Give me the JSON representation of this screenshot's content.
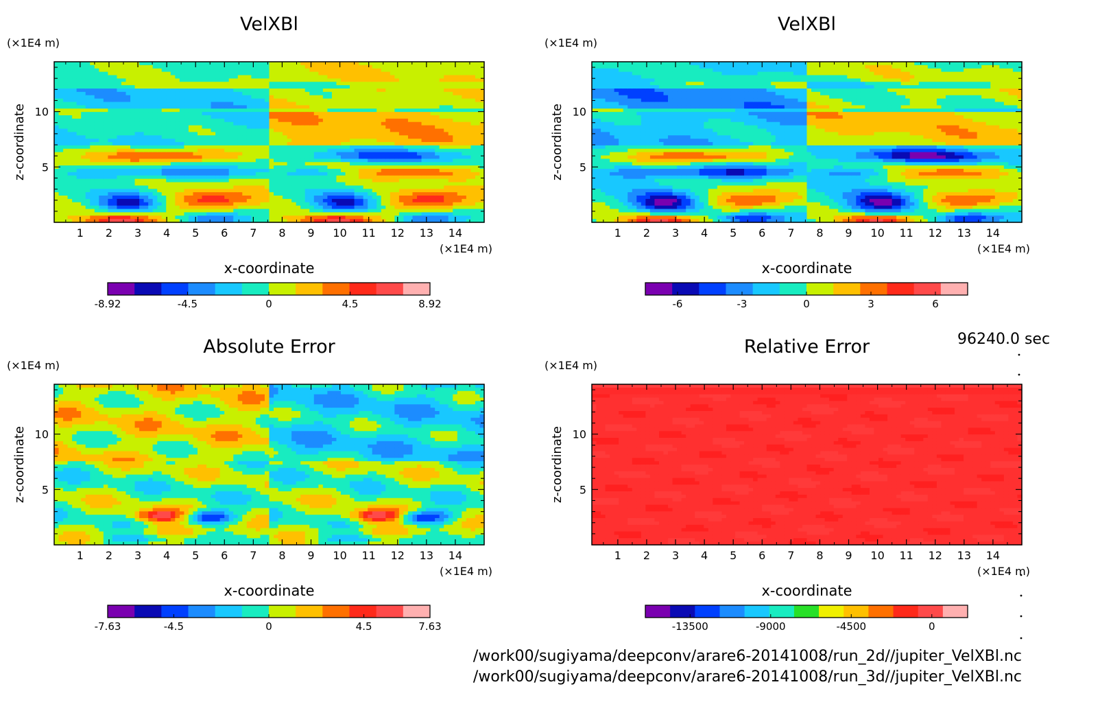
{
  "time_label": "96240.0 sec",
  "footer": {
    "file_2d": "/work00/sugiyama/deepconv/arare6-20141008/run_2d//jupiter_VelXBl.nc",
    "file_3d": "/work00/sugiyama/deepconv/arare6-20141008/run_3d//jupiter_VelXBl.nc"
  },
  "palettes": {
    "ten_level": [
      "#7a00b0",
      "#0a0ab4",
      "#0040ff",
      "#1c8cff",
      "#18c8ff",
      "#18ecc0",
      "#c8f000",
      "#ffc000",
      "#ff7000",
      "#ff2a1a",
      "#ff4a4a",
      "#ffb0b0"
    ],
    "relative": [
      "#7a00b0",
      "#0a0ab4",
      "#0040ff",
      "#1c8cff",
      "#18c8ff",
      "#18ecc0",
      "#28e028",
      "#f0f000",
      "#ffc000",
      "#ff7000",
      "#ff2a1a",
      "#ff4a4a",
      "#ffb0b0"
    ]
  },
  "chart_data": [
    {
      "type": "heatmap",
      "title": "VelXBl",
      "xlabel": "x-coordinate",
      "ylabel": "z-coordinate",
      "x_unit": "(×1E4 m)",
      "y_unit": "(×1E4 m)",
      "xlim": [
        0.1,
        15
      ],
      "ylim": [
        0,
        14.5
      ],
      "x_ticks": [
        "1",
        "2",
        "3",
        "4",
        "5",
        "6",
        "7",
        "8",
        "9",
        "10",
        "11",
        "12",
        "13",
        "14"
      ],
      "y_ticks": [
        "5",
        "10"
      ],
      "colorbar": {
        "ticks": [
          "-8.92",
          "-4.5",
          "0",
          "4.5",
          "8.92"
        ],
        "vmin": -8.92,
        "vmax": 8.92
      },
      "field_variant": 1,
      "grid": false
    },
    {
      "type": "heatmap",
      "title": "VelXBl",
      "xlabel": "x-coordinate",
      "ylabel": "z-coordinate",
      "x_unit": "(×1E4 m)",
      "y_unit": "(×1E4 m)",
      "xlim": [
        0.1,
        15
      ],
      "ylim": [
        0,
        14.5
      ],
      "x_ticks": [
        "1",
        "2",
        "3",
        "4",
        "5",
        "6",
        "7",
        "8",
        "9",
        "10",
        "11",
        "12",
        "13",
        "14"
      ],
      "y_ticks": [
        "5",
        "10"
      ],
      "colorbar": {
        "ticks": [
          "-6",
          "-3",
          "0",
          "3",
          "6"
        ],
        "vmin": -7.5,
        "vmax": 7.5
      },
      "field_variant": 2,
      "grid": false
    },
    {
      "type": "heatmap",
      "title": "Absolute Error",
      "xlabel": "x-coordinate",
      "ylabel": "z-coordinate",
      "x_unit": "(×1E4 m)",
      "y_unit": "(×1E4 m)",
      "xlim": [
        0.1,
        15
      ],
      "ylim": [
        0,
        14.5
      ],
      "x_ticks": [
        "1",
        "2",
        "3",
        "4",
        "5",
        "6",
        "7",
        "8",
        "9",
        "10",
        "11",
        "12",
        "13",
        "14"
      ],
      "y_ticks": [
        "5",
        "10"
      ],
      "colorbar": {
        "ticks": [
          "-7.63",
          "-4.5",
          "0",
          "4.5",
          "7.63"
        ],
        "vmin": -7.63,
        "vmax": 7.63
      },
      "field_variant": 3,
      "grid": false
    },
    {
      "type": "heatmap",
      "title": "Relative Error",
      "xlabel": "x-coordinate",
      "ylabel": "z-coordinate",
      "x_unit": "(×1E4 m)",
      "y_unit": "(×1E4 m)",
      "xlim": [
        0.1,
        15
      ],
      "ylim": [
        0,
        14.5
      ],
      "x_ticks": [
        "1",
        "2",
        "3",
        "4",
        "5",
        "6",
        "7",
        "8",
        "9",
        "10",
        "11",
        "12",
        "13",
        "14"
      ],
      "y_ticks": [
        "5",
        "10"
      ],
      "colorbar": {
        "ticks": [
          "-13500",
          "-9000",
          "-4500",
          "0"
        ],
        "vmin": -16000,
        "vmax": 2000
      },
      "dominant_color": "#ff3030",
      "field_variant": 4,
      "grid": false
    }
  ]
}
